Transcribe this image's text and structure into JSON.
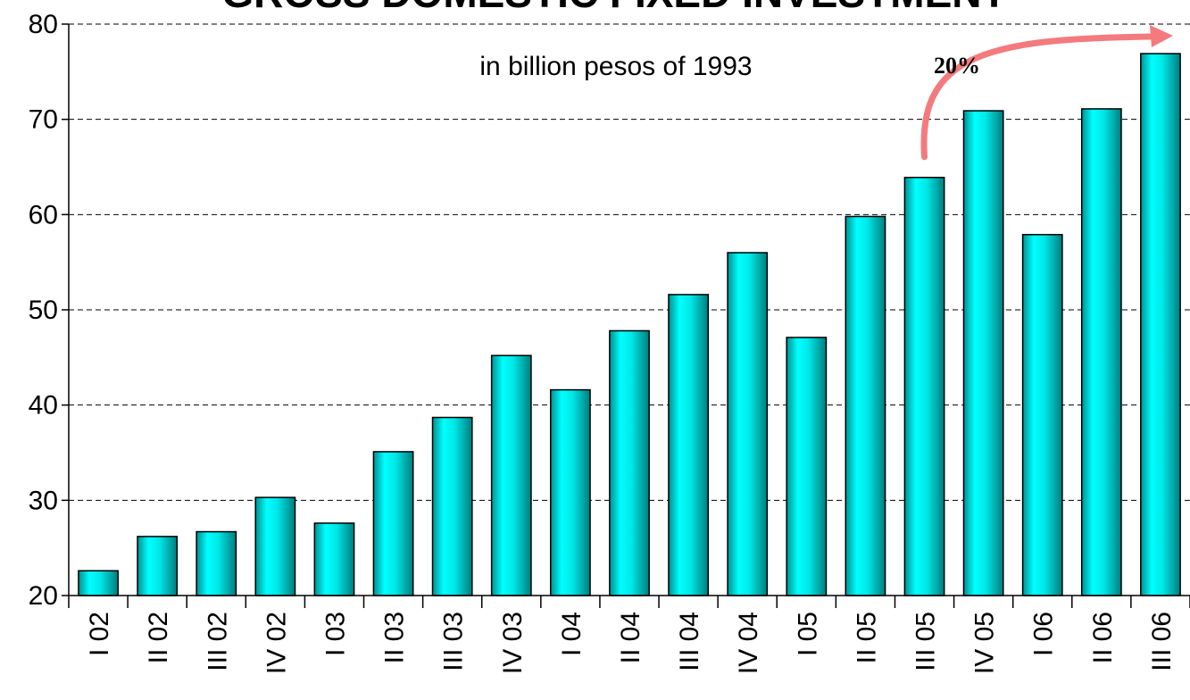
{
  "chart_data": {
    "type": "bar",
    "title": "GROSS DOMESTIC FIXED INVESTMENT",
    "subtitle": "in billion pesos of 1993",
    "categories": [
      "I 02",
      "II 02",
      "III 02",
      "IV 02",
      "I 03",
      "II 03",
      "III 03",
      "IV 03",
      "I 04",
      "II 04",
      "III 04",
      "IV 04",
      "I 05",
      "II 05",
      "III 05",
      "IV 05",
      "I 06",
      "II 06",
      "III 06"
    ],
    "values": [
      22.6,
      26.2,
      26.7,
      30.3,
      27.6,
      35.1,
      38.7,
      45.2,
      41.6,
      47.8,
      51.6,
      56.0,
      47.1,
      59.8,
      63.9,
      70.9,
      57.9,
      71.1,
      76.9
    ],
    "ylim": [
      20,
      80
    ],
    "yticks": [
      20,
      30,
      40,
      50,
      60,
      70,
      80
    ],
    "grid": true,
    "bar_color": "#00e5e5",
    "annotation": {
      "text": "20%",
      "arrow_color": "#f47a7e",
      "from_category": "III 05",
      "to_category": "III 06"
    }
  }
}
